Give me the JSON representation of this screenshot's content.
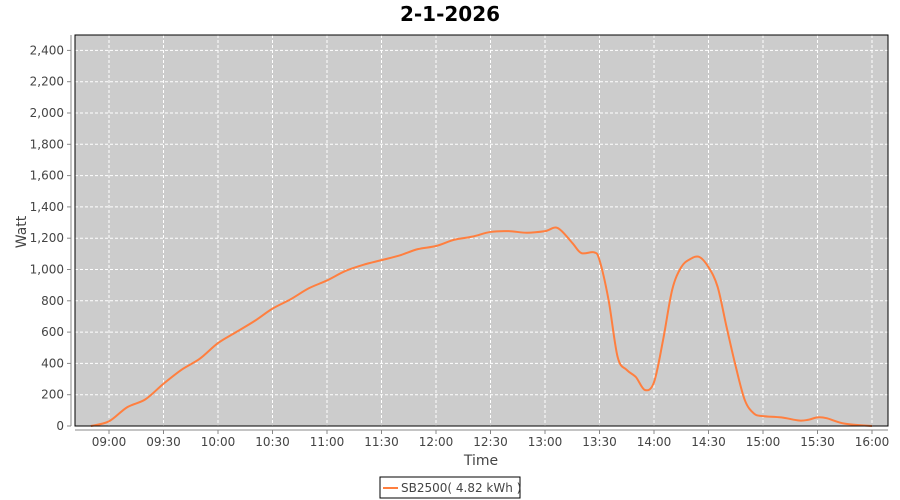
{
  "chart_data": {
    "type": "line",
    "title": "2-1-2026",
    "xlabel": "Time",
    "ylabel": "Watt",
    "ylim": [
      0,
      2500
    ],
    "xlim": [
      "08:40",
      "16:10"
    ],
    "yticks": [
      "0",
      "200",
      "400",
      "600",
      "800",
      "1,000",
      "1,200",
      "1,400",
      "1,600",
      "1,800",
      "2,000",
      "2,200",
      "2,400"
    ],
    "ytick_values": [
      0,
      200,
      400,
      600,
      800,
      1000,
      1200,
      1400,
      1600,
      1800,
      2000,
      2200,
      2400
    ],
    "xticks": [
      "09:00",
      "09:30",
      "10:00",
      "10:30",
      "11:00",
      "11:30",
      "12:00",
      "12:30",
      "13:00",
      "13:30",
      "14:00",
      "14:30",
      "15:00",
      "15:30",
      "16:00"
    ],
    "grid": true,
    "legend_position": "bottom",
    "colors": {
      "series": "#ff7f3f",
      "plot_bg": "#cccccc",
      "grid": "#ffffff"
    },
    "series": [
      {
        "name": "SB2500( 4.82 kWh )",
        "x": [
          "08:50",
          "09:00",
          "09:10",
          "09:20",
          "09:30",
          "09:40",
          "09:50",
          "10:00",
          "10:10",
          "10:20",
          "10:30",
          "10:40",
          "10:50",
          "11:00",
          "11:10",
          "11:20",
          "11:30",
          "11:40",
          "11:50",
          "12:00",
          "12:10",
          "12:20",
          "12:30",
          "12:40",
          "12:50",
          "13:00",
          "13:07",
          "13:15",
          "13:20",
          "13:27",
          "13:30",
          "13:35",
          "13:40",
          "13:45",
          "13:50",
          "13:55",
          "14:00",
          "14:05",
          "14:10",
          "14:15",
          "14:20",
          "14:25",
          "14:30",
          "14:35",
          "14:40",
          "14:45",
          "14:50",
          "14:55",
          "15:00",
          "15:10",
          "15:20",
          "15:25",
          "15:30",
          "15:35",
          "15:45",
          "16:00"
        ],
        "values": [
          0,
          30,
          120,
          170,
          270,
          360,
          430,
          530,
          600,
          670,
          750,
          810,
          880,
          930,
          990,
          1030,
          1060,
          1090,
          1130,
          1150,
          1190,
          1210,
          1240,
          1245,
          1235,
          1245,
          1265,
          1170,
          1105,
          1110,
          1060,
          805,
          440,
          358,
          313,
          230,
          280,
          550,
          870,
          1015,
          1067,
          1080,
          1015,
          890,
          630,
          380,
          165,
          80,
          63,
          55,
          35,
          40,
          55,
          50,
          15,
          0
        ]
      }
    ]
  }
}
